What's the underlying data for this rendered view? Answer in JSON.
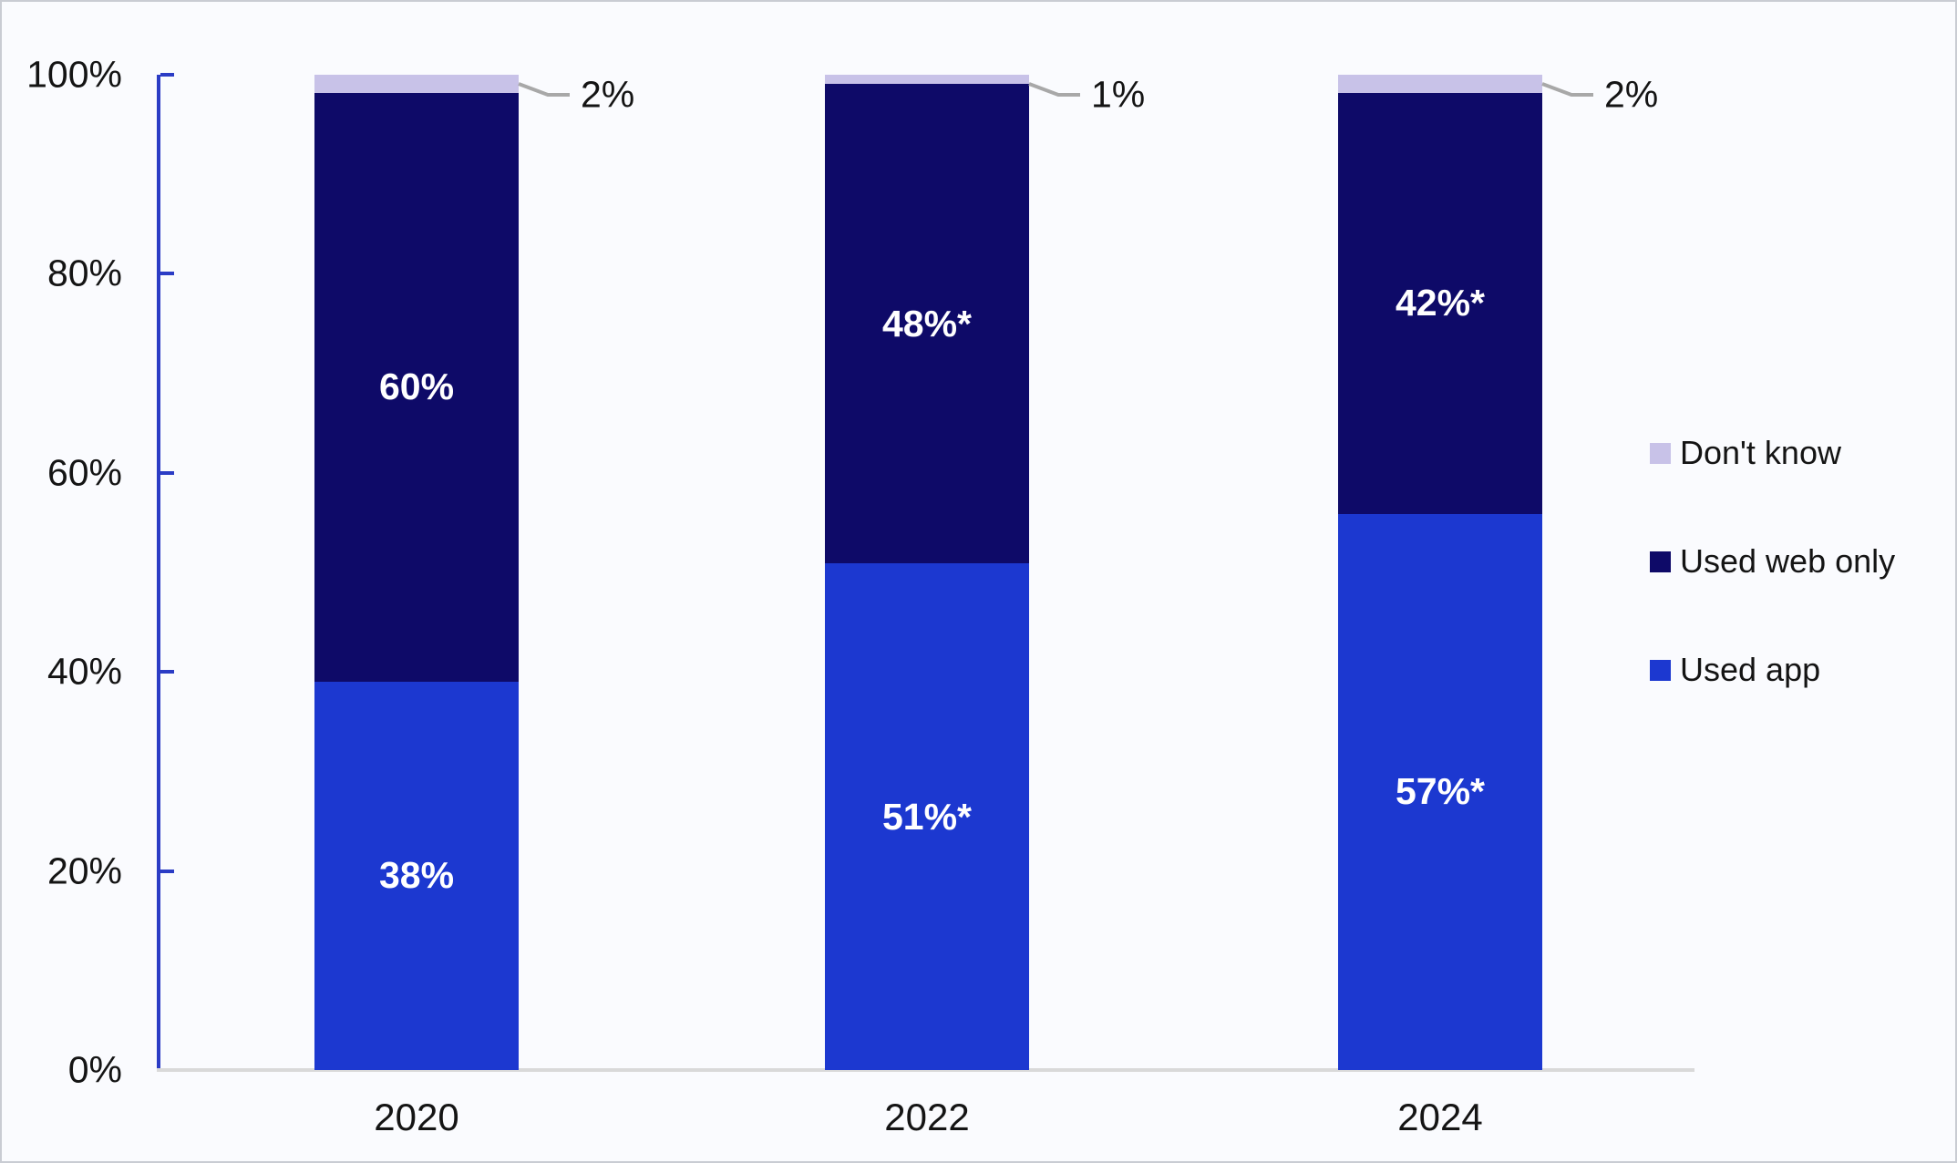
{
  "chart_data": {
    "type": "bar",
    "stacked": true,
    "orientation": "vertical",
    "categories": [
      "2020",
      "2022",
      "2024"
    ],
    "series": [
      {
        "name": "Used app",
        "color": "#1c38d0",
        "values": [
          38,
          51,
          57
        ],
        "labels": [
          "38%",
          "51%*",
          "57%*"
        ],
        "label_style": "inside-white-bold"
      },
      {
        "name": "Used web only",
        "color": "#0e0a68",
        "values": [
          60,
          48,
          42
        ],
        "labels": [
          "60%",
          "48%*",
          "42%*"
        ],
        "label_style": "inside-white-bold"
      },
      {
        "name": "Don't know",
        "color": "#c8c2e8",
        "values": [
          2,
          1,
          2
        ],
        "labels": [
          "2%",
          "1%",
          "2%"
        ],
        "label_style": "outside-callout"
      }
    ],
    "xlabel": "",
    "ylabel": "",
    "ylim": [
      0,
      100
    ],
    "yticks": [
      {
        "value": 0,
        "label": "0%"
      },
      {
        "value": 20,
        "label": "20%"
      },
      {
        "value": 40,
        "label": "40%"
      },
      {
        "value": 60,
        "label": "60%"
      },
      {
        "value": 80,
        "label": "80%"
      },
      {
        "value": 100,
        "label": "100%"
      }
    ],
    "grid": false,
    "legend_position": "right"
  },
  "legend": {
    "items": [
      {
        "label": "Don't know",
        "color": "#c8c2e8"
      },
      {
        "label": "Used web only",
        "color": "#0e0a68"
      },
      {
        "label": "Used app",
        "color": "#1c38d0"
      }
    ]
  },
  "colors": {
    "background": "#fafbfe",
    "frame_border": "#c9ccd3",
    "y_axis": "#2b3cc5",
    "x_axis": "#d9d9d9",
    "callout_line": "#a8a8a8",
    "tick_text": "#141414",
    "bar_label_text": "#ffffff"
  }
}
